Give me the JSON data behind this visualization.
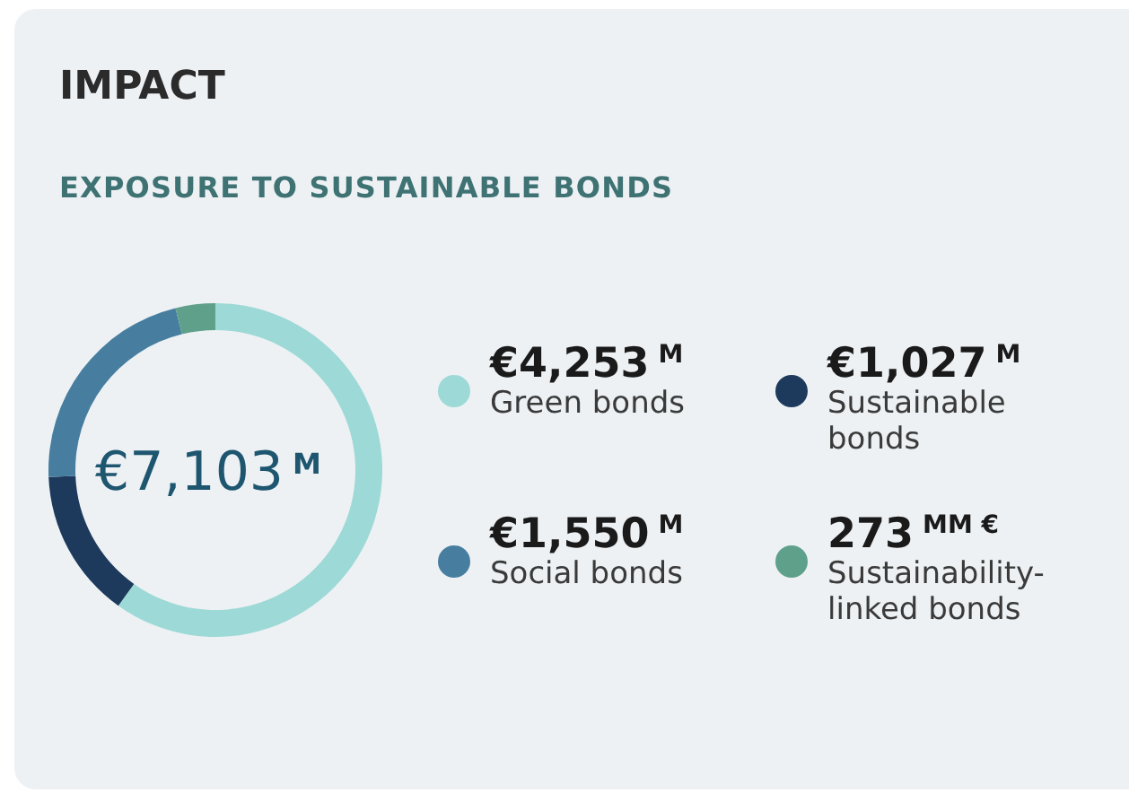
{
  "chart_data": {
    "type": "donut",
    "title": "IMPACT",
    "subtitle": "EXPOSURE TO SUSTAINABLE BONDS",
    "categories": [
      "Green bonds",
      "Sustainable bonds",
      "Social bonds",
      "Sustainability-linked bonds"
    ],
    "values": [
      4253,
      1027,
      1550,
      273
    ],
    "value_labels": [
      "€4,253 $^{M}$",
      "€1,027 $^{M}$",
      "€1,550 $^{M}$",
      "273 $^{MM €}$"
    ],
    "colors": [
      "#9dd9d6",
      "#1d3a5c",
      "#477ea0",
      "#5fa08a"
    ],
    "annotations": [
      "€7,103 $^{M}$"
    ],
    "legend": "right"
  }
}
